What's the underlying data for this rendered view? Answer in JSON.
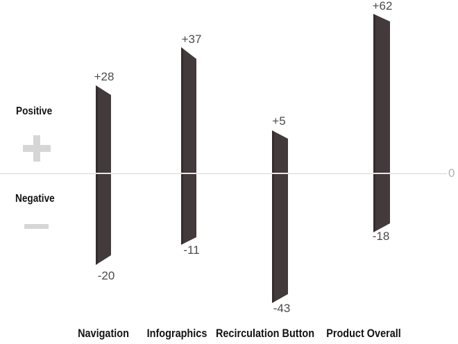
{
  "chart_data": {
    "type": "bar",
    "subtype": "floating-range-bar",
    "title": "",
    "xlabel": "",
    "ylabel": "",
    "grid": false,
    "categories": [
      "Navigation",
      "Infographics",
      "Recirculation Button",
      "Product Overall"
    ],
    "bars": [
      {
        "category": "Navigation",
        "high": 28,
        "low": -20,
        "high_label": "+28",
        "low_label": "-20"
      },
      {
        "category": "Infographics",
        "high": 37,
        "low": -11,
        "high_label": "+37",
        "low_label": "-11"
      },
      {
        "category": "Recirculation Button",
        "high": 5,
        "low": -43,
        "high_label": "+5",
        "low_label": "-43"
      },
      {
        "category": "Product Overall",
        "high": 62,
        "low": -18,
        "high_label": "+62",
        "low_label": "-18"
      }
    ],
    "axis": {
      "zero_value": 0,
      "zero_label": "0",
      "positive_label": "Positive",
      "negative_label": "Negative"
    }
  },
  "colors": {
    "bar": "#433a3c",
    "axis_line": "#d4d4d4",
    "value_label": "#4d4a4a",
    "category_label": "#131313",
    "sign_symbol": "#d6d6d6",
    "zero_label": "#b2b2b2"
  }
}
